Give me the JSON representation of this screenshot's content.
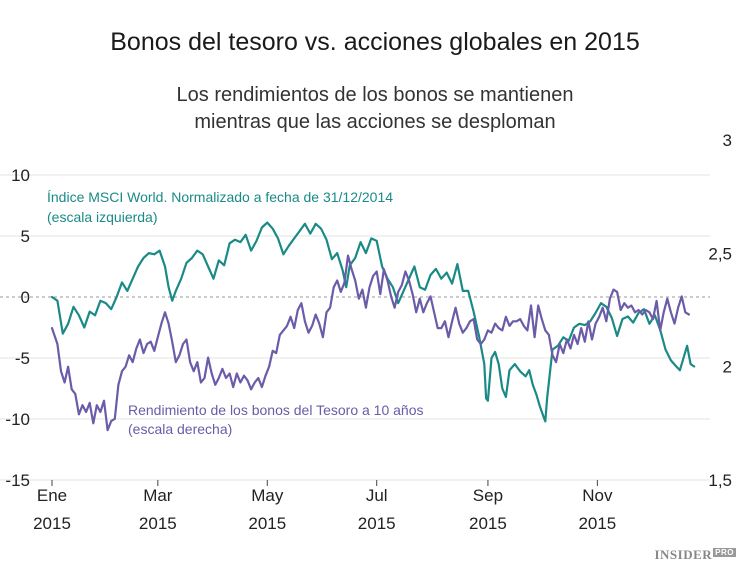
{
  "chart_data": {
    "type": "line",
    "title": "Bonos del tesoro vs. acciones globales en 2015",
    "subtitle": [
      "Los rendimientos de los bonos se mantienen",
      "mientras que las acciones se desploman"
    ],
    "x_ticks": [
      {
        "month": "Ene",
        "year": "2015",
        "day": 0
      },
      {
        "month": "Mar",
        "year": "2015",
        "day": 59
      },
      {
        "month": "May",
        "year": "2015",
        "day": 120
      },
      {
        "month": "Jul",
        "year": "2015",
        "day": 181
      },
      {
        "month": "Sep",
        "year": "2015",
        "day": 243
      },
      {
        "month": "Nov",
        "year": "2015",
        "day": 304
      }
    ],
    "x_range_days": [
      0,
      364
    ],
    "left_axis": {
      "ticks": [
        "10",
        "5",
        "0",
        "-5",
        "-10",
        "-15"
      ],
      "values": [
        10,
        5,
        0,
        -5,
        -10,
        -15
      ],
      "ylim": [
        -15,
        10
      ]
    },
    "right_axis": {
      "ticks": [
        "3",
        "2,5",
        "2",
        "1,5"
      ],
      "values": [
        3,
        2.5,
        2,
        1.5
      ],
      "ylim": [
        1.5,
        3
      ]
    },
    "series": [
      {
        "name": "Índice MSCI World. Normalizado a fecha de 31/12/2014",
        "axis": "left",
        "color": "#1a8a87",
        "label_lines": [
          "Índice MSCI World. Normalizado a fecha de 31/12/2014",
          "(escala izquierda)"
        ],
        "points": [
          [
            0,
            0
          ],
          [
            3,
            -0.3
          ],
          [
            6,
            -3
          ],
          [
            9,
            -2.2
          ],
          [
            12,
            -0.8
          ],
          [
            15,
            -1.5
          ],
          [
            18,
            -2.5
          ],
          [
            21,
            -1.2
          ],
          [
            24,
            -1.5
          ],
          [
            27,
            -0.3
          ],
          [
            30,
            -0.5
          ],
          [
            33,
            -1
          ],
          [
            36,
            0
          ],
          [
            39,
            1.2
          ],
          [
            42,
            0.5
          ],
          [
            45,
            1.5
          ],
          [
            48,
            2.5
          ],
          [
            51,
            3.2
          ],
          [
            54,
            3.6
          ],
          [
            57,
            3.5
          ],
          [
            60,
            3.8
          ],
          [
            63,
            2.5
          ],
          [
            65,
            0.8
          ],
          [
            67,
            -0.3
          ],
          [
            69,
            0.5
          ],
          [
            72,
            1.5
          ],
          [
            75,
            2.8
          ],
          [
            78,
            3.2
          ],
          [
            81,
            3.8
          ],
          [
            84,
            3.5
          ],
          [
            87,
            2.5
          ],
          [
            90,
            1.5
          ],
          [
            93,
            3
          ],
          [
            96,
            2.6
          ],
          [
            99,
            4.4
          ],
          [
            102,
            4.7
          ],
          [
            105,
            4.5
          ],
          [
            108,
            5.1
          ],
          [
            111,
            3.8
          ],
          [
            114,
            4.6
          ],
          [
            117,
            5.7
          ],
          [
            120,
            6.1
          ],
          [
            123,
            5.6
          ],
          [
            126,
            4.8
          ],
          [
            129,
            3.5
          ],
          [
            132,
            4.2
          ],
          [
            135,
            4.8
          ],
          [
            138,
            5.4
          ],
          [
            141,
            6
          ],
          [
            144,
            5.2
          ],
          [
            147,
            6
          ],
          [
            150,
            5.6
          ],
          [
            153,
            4.7
          ],
          [
            156,
            3.1
          ],
          [
            159,
            3.6
          ],
          [
            162,
            2.2
          ],
          [
            164,
            0.8
          ],
          [
            166,
            2.6
          ],
          [
            169,
            3.2
          ],
          [
            172,
            4.5
          ],
          [
            175,
            3.6
          ],
          [
            178,
            4.8
          ],
          [
            181,
            4.6
          ],
          [
            184,
            2.5
          ],
          [
            187,
            1.5
          ],
          [
            190,
            0.8
          ],
          [
            193,
            -0.5
          ],
          [
            196,
            0.5
          ],
          [
            199,
            1.5
          ],
          [
            202,
            2.5
          ],
          [
            205,
            0.8
          ],
          [
            208,
            0.6
          ],
          [
            211,
            1.8
          ],
          [
            214,
            2.3
          ],
          [
            217,
            1.5
          ],
          [
            220,
            2
          ],
          [
            223,
            1.1
          ],
          [
            226,
            2.7
          ],
          [
            229,
            0.5
          ],
          [
            232,
            0.5
          ],
          [
            235,
            -1.2
          ],
          [
            238,
            -3.2
          ],
          [
            241,
            -5.5
          ],
          [
            242,
            -8.3
          ],
          [
            243,
            -8.5
          ],
          [
            245,
            -5
          ],
          [
            247,
            -4.5
          ],
          [
            249,
            -5.5
          ],
          [
            251,
            -7.5
          ],
          [
            253,
            -8.2
          ],
          [
            255,
            -6
          ],
          [
            258,
            -5.5
          ],
          [
            261,
            -6.1
          ],
          [
            264,
            -6.5
          ],
          [
            266,
            -6
          ],
          [
            268,
            -7.2
          ],
          [
            270,
            -8
          ],
          [
            272,
            -9
          ],
          [
            274,
            -9.8
          ],
          [
            275,
            -10.2
          ],
          [
            276,
            -8.3
          ],
          [
            279,
            -4.3
          ],
          [
            282,
            -4
          ],
          [
            285,
            -3.3
          ],
          [
            288,
            -3.6
          ],
          [
            291,
            -2.5
          ],
          [
            294,
            -2.2
          ],
          [
            297,
            -2.3
          ],
          [
            300,
            -2
          ],
          [
            303,
            -1.3
          ],
          [
            306,
            -0.5
          ],
          [
            309,
            -0.8
          ],
          [
            312,
            -1.7
          ],
          [
            315,
            -3.2
          ],
          [
            318,
            -1.8
          ],
          [
            321,
            -1.6
          ],
          [
            324,
            -2.1
          ],
          [
            327,
            -1.3
          ],
          [
            330,
            -1
          ],
          [
            333,
            -2.2
          ],
          [
            336,
            -1.5
          ],
          [
            339,
            -2.7
          ],
          [
            342,
            -4.3
          ],
          [
            345,
            -5.2
          ],
          [
            348,
            -5.7
          ],
          [
            350,
            -6
          ],
          [
            352,
            -5
          ],
          [
            354,
            -4
          ],
          [
            356,
            -5.5
          ],
          [
            358,
            -5.7
          ]
        ]
      },
      {
        "name": "Rendimiento de los bonos del Tesoro a 10 años",
        "axis": "right",
        "color": "#6b5ba8",
        "label_lines": [
          "Rendimiento de los bonos del Tesoro a 10 años",
          "(escala derecha)"
        ],
        "points": [
          [
            0,
            2.17
          ],
          [
            3,
            2.1
          ],
          [
            5,
            1.98
          ],
          [
            7,
            1.93
          ],
          [
            9,
            2.0
          ],
          [
            11,
            1.9
          ],
          [
            13,
            1.88
          ],
          [
            15,
            1.79
          ],
          [
            17,
            1.83
          ],
          [
            19,
            1.8
          ],
          [
            21,
            1.84
          ],
          [
            23,
            1.75
          ],
          [
            25,
            1.83
          ],
          [
            27,
            1.8
          ],
          [
            29,
            1.85
          ],
          [
            31,
            1.72
          ],
          [
            33,
            1.76
          ],
          [
            35,
            1.77
          ],
          [
            37,
            1.92
          ],
          [
            39,
            1.98
          ],
          [
            41,
            2.0
          ],
          [
            43,
            2.05
          ],
          [
            45,
            2.02
          ],
          [
            47,
            2.08
          ],
          [
            49,
            2.12
          ],
          [
            51,
            2.06
          ],
          [
            53,
            2.1
          ],
          [
            55,
            2.11
          ],
          [
            57,
            2.07
          ],
          [
            59,
            2.13
          ],
          [
            61,
            2.19
          ],
          [
            63,
            2.24
          ],
          [
            65,
            2.19
          ],
          [
            67,
            2.11
          ],
          [
            69,
            2.02
          ],
          [
            71,
            2.05
          ],
          [
            73,
            2.1
          ],
          [
            75,
            2.12
          ],
          [
            77,
            2.02
          ],
          [
            79,
            1.98
          ],
          [
            81,
            2.02
          ],
          [
            83,
            1.93
          ],
          [
            85,
            1.95
          ],
          [
            87,
            2.04
          ],
          [
            89,
            1.97
          ],
          [
            91,
            1.92
          ],
          [
            93,
            1.95
          ],
          [
            95,
            1.99
          ],
          [
            97,
            1.95
          ],
          [
            99,
            1.97
          ],
          [
            101,
            1.91
          ],
          [
            103,
            1.97
          ],
          [
            105,
            1.93
          ],
          [
            107,
            1.96
          ],
          [
            109,
            1.94
          ],
          [
            111,
            1.9
          ],
          [
            113,
            1.93
          ],
          [
            115,
            1.95
          ],
          [
            117,
            1.91
          ],
          [
            119,
            1.96
          ],
          [
            121,
            2.0
          ],
          [
            123,
            2.07
          ],
          [
            125,
            2.06
          ],
          [
            127,
            2.14
          ],
          [
            129,
            2.16
          ],
          [
            131,
            2.18
          ],
          [
            133,
            2.22
          ],
          [
            135,
            2.17
          ],
          [
            137,
            2.25
          ],
          [
            139,
            2.28
          ],
          [
            141,
            2.2
          ],
          [
            143,
            2.15
          ],
          [
            145,
            2.18
          ],
          [
            147,
            2.23
          ],
          [
            149,
            2.19
          ],
          [
            151,
            2.13
          ],
          [
            153,
            2.24
          ],
          [
            155,
            2.26
          ],
          [
            157,
            2.35
          ],
          [
            159,
            2.38
          ],
          [
            161,
            2.33
          ],
          [
            163,
            2.37
          ],
          [
            165,
            2.49
          ],
          [
            167,
            2.43
          ],
          [
            169,
            2.38
          ],
          [
            171,
            2.3
          ],
          [
            173,
            2.34
          ],
          [
            175,
            2.26
          ],
          [
            177,
            2.35
          ],
          [
            179,
            2.4
          ],
          [
            181,
            2.42
          ],
          [
            183,
            2.32
          ],
          [
            185,
            2.43
          ],
          [
            187,
            2.38
          ],
          [
            189,
            2.31
          ],
          [
            191,
            2.26
          ],
          [
            193,
            2.33
          ],
          [
            195,
            2.36
          ],
          [
            197,
            2.42
          ],
          [
            199,
            2.38
          ],
          [
            201,
            2.32
          ],
          [
            203,
            2.24
          ],
          [
            205,
            2.3
          ],
          [
            207,
            2.24
          ],
          [
            209,
            2.28
          ],
          [
            211,
            2.31
          ],
          [
            213,
            2.24
          ],
          [
            215,
            2.17
          ],
          [
            217,
            2.17
          ],
          [
            219,
            2.2
          ],
          [
            221,
            2.13
          ],
          [
            223,
            2.2
          ],
          [
            225,
            2.26
          ],
          [
            227,
            2.19
          ],
          [
            229,
            2.15
          ],
          [
            231,
            2.17
          ],
          [
            233,
            2.2
          ],
          [
            235,
            2.21
          ],
          [
            237,
            2.12
          ],
          [
            239,
            2.1
          ],
          [
            241,
            2.12
          ],
          [
            243,
            2.16
          ],
          [
            245,
            2.15
          ],
          [
            247,
            2.19
          ],
          [
            249,
            2.17
          ],
          [
            251,
            2.16
          ],
          [
            253,
            2.22
          ],
          [
            255,
            2.18
          ],
          [
            257,
            2.2
          ],
          [
            259,
            2.2
          ],
          [
            261,
            2.21
          ],
          [
            263,
            2.18
          ],
          [
            265,
            2.16
          ],
          [
            267,
            2.27
          ],
          [
            269,
            2.13
          ],
          [
            271,
            2.27
          ],
          [
            273,
            2.21
          ],
          [
            275,
            2.16
          ],
          [
            277,
            2.14
          ],
          [
            279,
            2.05
          ],
          [
            281,
            2.02
          ],
          [
            283,
            2.1
          ],
          [
            285,
            2.06
          ],
          [
            287,
            2.12
          ],
          [
            289,
            2.08
          ],
          [
            291,
            2.14
          ],
          [
            293,
            2.1
          ],
          [
            295,
            2.17
          ],
          [
            297,
            2.11
          ],
          [
            299,
            2.2
          ],
          [
            301,
            2.12
          ],
          [
            303,
            2.19
          ],
          [
            305,
            2.22
          ],
          [
            307,
            2.26
          ],
          [
            309,
            2.2
          ],
          [
            311,
            2.3
          ],
          [
            313,
            2.34
          ],
          [
            315,
            2.33
          ],
          [
            317,
            2.25
          ],
          [
            319,
            2.28
          ],
          [
            321,
            2.26
          ],
          [
            323,
            2.27
          ],
          [
            325,
            2.24
          ],
          [
            327,
            2.25
          ],
          [
            329,
            2.23
          ],
          [
            331,
            2.25
          ],
          [
            333,
            2.24
          ],
          [
            335,
            2.21
          ],
          [
            337,
            2.29
          ],
          [
            339,
            2.16
          ],
          [
            341,
            2.24
          ],
          [
            343,
            2.3
          ],
          [
            345,
            2.24
          ],
          [
            347,
            2.19
          ],
          [
            349,
            2.26
          ],
          [
            351,
            2.31
          ],
          [
            353,
            2.24
          ],
          [
            355,
            2.23
          ]
        ]
      }
    ]
  },
  "brand": {
    "name": "INSIDER",
    "badge": "PRO"
  }
}
